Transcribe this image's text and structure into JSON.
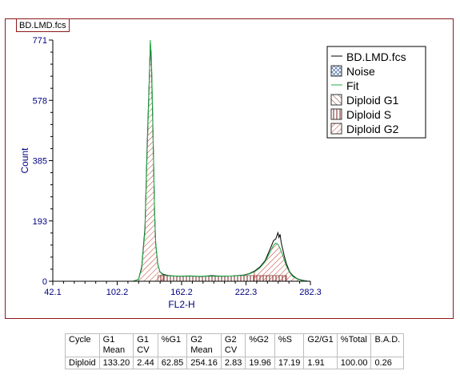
{
  "file_tab": "BD.LMD.fcs",
  "colors": {
    "frame": "#8b1a1a",
    "data_line": "#000000",
    "fit_line": "#22b14c",
    "hatch": "#c0392b",
    "axis": "#000080"
  },
  "chart_data": {
    "type": "line",
    "xlabel": "FL2-H",
    "ylabel": "Count",
    "xlim": [
      42.1,
      282.3
    ],
    "ylim": [
      0,
      771
    ],
    "x_ticks": [
      "42.1",
      "102.2",
      "162.2",
      "222.3",
      "282.3"
    ],
    "y_ticks": [
      "0",
      "193",
      "385",
      "578",
      "771"
    ],
    "legend_position": "top-right",
    "legend": [
      {
        "label": "BD.LMD.fcs",
        "swatch": "line-black"
      },
      {
        "label": "Noise",
        "swatch": "box-cross"
      },
      {
        "label": "Fit",
        "swatch": "line-green"
      },
      {
        "label": "Diploid G1",
        "swatch": "box-back-hatch"
      },
      {
        "label": "Diploid S",
        "swatch": "box-vertical"
      },
      {
        "label": "Diploid G2",
        "swatch": "box-forward-hatch"
      }
    ],
    "series": [
      {
        "name": "BD.LMD.fcs",
        "x": [
          117,
          122,
          125,
          128,
          130,
          132,
          133,
          134,
          135,
          136,
          137,
          138,
          140,
          142,
          145,
          150,
          160,
          170,
          180,
          190,
          200,
          210,
          220,
          225,
          230,
          235,
          240,
          245,
          248,
          250,
          252,
          253,
          254,
          255,
          256,
          257,
          258,
          260,
          263,
          266,
          270,
          275,
          280
        ],
        "y": [
          0,
          6,
          45,
          170,
          420,
          640,
          760,
          700,
          560,
          390,
          220,
          120,
          55,
          30,
          22,
          18,
          16,
          17,
          15,
          18,
          16,
          17,
          20,
          24,
          32,
          45,
          65,
          105,
          130,
          135,
          155,
          140,
          150,
          125,
          110,
          95,
          80,
          55,
          30,
          18,
          8,
          3,
          0
        ]
      },
      {
        "name": "Fit",
        "x": [
          117,
          122,
          125,
          128,
          130,
          132,
          133,
          134,
          135,
          136,
          137,
          138,
          140,
          142,
          145,
          150,
          160,
          170,
          180,
          190,
          200,
          210,
          220,
          225,
          230,
          235,
          240,
          245,
          248,
          250,
          252,
          254,
          256,
          258,
          260,
          263,
          266,
          270,
          275,
          280
        ],
        "y": [
          0,
          6,
          40,
          160,
          400,
          630,
          771,
          720,
          580,
          400,
          230,
          125,
          55,
          30,
          20,
          17,
          16,
          16,
          16,
          16,
          16,
          17,
          19,
          23,
          30,
          42,
          62,
          95,
          115,
          122,
          118,
          105,
          88,
          68,
          48,
          28,
          15,
          7,
          2,
          0
        ]
      }
    ]
  },
  "table": {
    "headers": [
      [
        "Cycle"
      ],
      [
        "G1",
        "Mean"
      ],
      [
        "G1",
        "CV"
      ],
      [
        "%G1"
      ],
      [
        "G2",
        "Mean"
      ],
      [
        "G2",
        "CV"
      ],
      [
        "%G2"
      ],
      [
        "%S"
      ],
      [
        "G2/G1"
      ],
      [
        "%Total"
      ],
      [
        "B.A.D."
      ]
    ],
    "rows": [
      [
        "Diploid",
        "133.20",
        "2.44",
        "62.85",
        "254.16",
        "2.83",
        "19.96",
        "17.19",
        "1.91",
        "100.00",
        "0.26"
      ]
    ]
  }
}
